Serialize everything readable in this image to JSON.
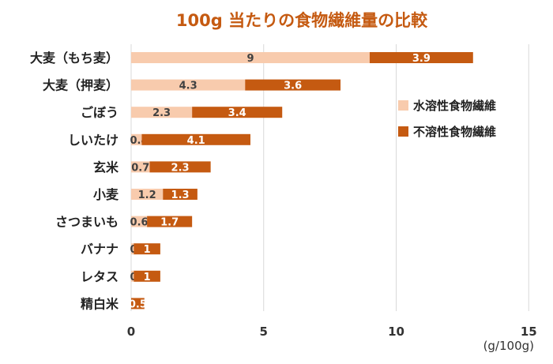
{
  "chart_data": {
    "type": "bar",
    "orientation": "horizontal",
    "stacked": true,
    "title": "100g 当たりの食物繊維量の比較",
    "xlabel": "",
    "ylabel": "",
    "unit": "(g/100g)",
    "xlim": [
      0,
      15
    ],
    "x_ticks": [
      "0",
      "5",
      "10",
      "15"
    ],
    "grid": true,
    "legend_position": "right",
    "categories": [
      "大麦（もち麦）",
      "大麦（押麦）",
      "ごぼう",
      "しいたけ",
      "玄米",
      "小麦",
      "さつまいも",
      "バナナ",
      "レタス",
      "精白米"
    ],
    "series": [
      {
        "name": "水溶性食物繊維",
        "color": "#f8cbad",
        "values": [
          9,
          4.3,
          2.3,
          0.4,
          0.7,
          1.2,
          0.6,
          0.1,
          0.1,
          0
        ],
        "labels": [
          "9",
          "4.3",
          "2.3",
          "0.4",
          "0.7",
          "1.2",
          "0.6",
          "0.1",
          "0.1",
          ""
        ]
      },
      {
        "name": "不溶性食物繊維",
        "color": "#c55a11",
        "values": [
          3.9,
          3.6,
          3.4,
          4.1,
          2.3,
          1.3,
          1.7,
          1,
          1,
          0.5
        ],
        "labels": [
          "3.9",
          "3.6",
          "3.4",
          "4.1",
          "2.3",
          "1.3",
          "1.7",
          "1",
          "1",
          "0.5"
        ]
      }
    ],
    "title_color": "#c55a11"
  }
}
